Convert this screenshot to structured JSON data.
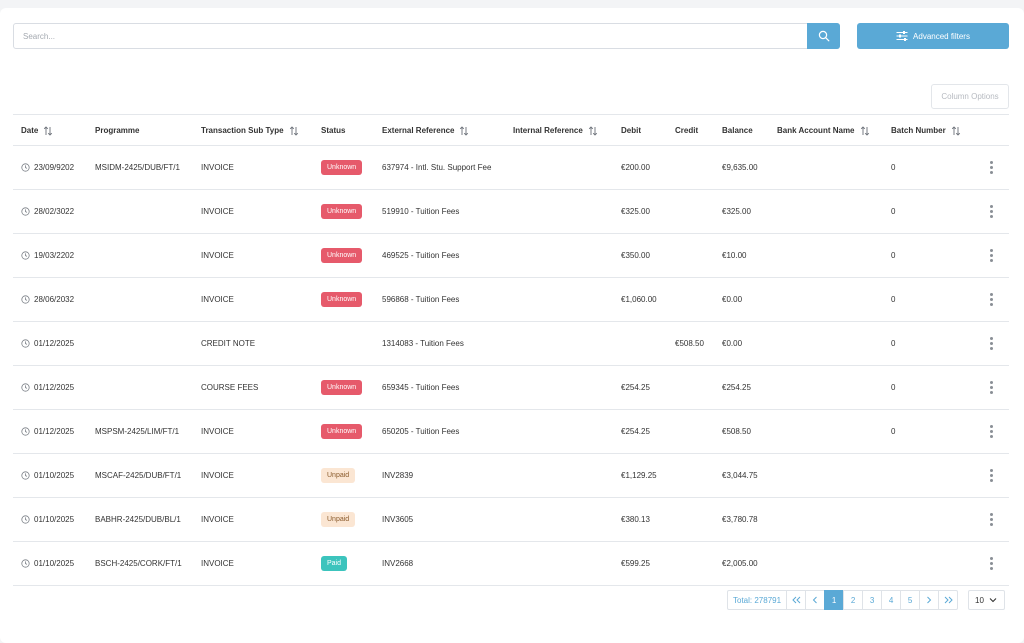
{
  "search": {
    "placeholder": "Search...",
    "value": ""
  },
  "toolbar": {
    "advanced_filters_label": "Advanced filters",
    "column_options_label": "Column Options"
  },
  "colors": {
    "accent": "#5aa9d6",
    "unknown": "#e65a6b",
    "unpaid_bg": "#fbe6d3",
    "unpaid_text": "#8a5a2b",
    "paid": "#3cc4bd"
  },
  "table": {
    "columns": [
      {
        "key": "date",
        "label": "Date",
        "sortable": true
      },
      {
        "key": "programme",
        "label": "Programme",
        "sortable": false
      },
      {
        "key": "subtype",
        "label": "Transaction Sub Type",
        "sortable": true
      },
      {
        "key": "status",
        "label": "Status",
        "sortable": false
      },
      {
        "key": "extref",
        "label": "External Reference",
        "sortable": true
      },
      {
        "key": "intref",
        "label": "Internal Reference",
        "sortable": true
      },
      {
        "key": "debit",
        "label": "Debit",
        "sortable": false
      },
      {
        "key": "credit",
        "label": "Credit",
        "sortable": false
      },
      {
        "key": "balance",
        "label": "Balance",
        "sortable": false
      },
      {
        "key": "bank",
        "label": "Bank Account Name",
        "sortable": true
      },
      {
        "key": "batch",
        "label": "Batch Number",
        "sortable": true
      }
    ],
    "rows": [
      {
        "date": "23/09/9202",
        "programme": "MSIDM-2425/DUB/FT/1",
        "subtype": "INVOICE",
        "status": "Unknown",
        "extref": "637974 - Intl. Stu. Support Fee",
        "intref": "",
        "debit": "€200.00",
        "credit": "",
        "balance": "€9,635.00",
        "bank": "",
        "batch": "0"
      },
      {
        "date": "28/02/3022",
        "programme": "",
        "subtype": "INVOICE",
        "status": "Unknown",
        "extref": "519910 - Tuition Fees",
        "intref": "",
        "debit": "€325.00",
        "credit": "",
        "balance": "€325.00",
        "bank": "",
        "batch": "0"
      },
      {
        "date": "19/03/2202",
        "programme": "",
        "subtype": "INVOICE",
        "status": "Unknown",
        "extref": "469525 - Tuition Fees",
        "intref": "",
        "debit": "€350.00",
        "credit": "",
        "balance": "€10.00",
        "bank": "",
        "batch": "0"
      },
      {
        "date": "28/06/2032",
        "programme": "",
        "subtype": "INVOICE",
        "status": "Unknown",
        "extref": "596868 - Tuition Fees",
        "intref": "",
        "debit": "€1,060.00",
        "credit": "",
        "balance": "€0.00",
        "bank": "",
        "batch": "0"
      },
      {
        "date": "01/12/2025",
        "programme": "",
        "subtype": "CREDIT NOTE",
        "status": "",
        "extref": "1314083 - Tuition Fees",
        "intref": "",
        "debit": "",
        "credit": "€508.50",
        "balance": "€0.00",
        "bank": "",
        "batch": "0"
      },
      {
        "date": "01/12/2025",
        "programme": "",
        "subtype": "COURSE FEES",
        "status": "Unknown",
        "extref": "659345 - Tuition Fees",
        "intref": "",
        "debit": "€254.25",
        "credit": "",
        "balance": "€254.25",
        "bank": "",
        "batch": "0"
      },
      {
        "date": "01/12/2025",
        "programme": "MSPSM-2425/LIM/FT/1",
        "subtype": "INVOICE",
        "status": "Unknown",
        "extref": "650205 - Tuition Fees",
        "intref": "",
        "debit": "€254.25",
        "credit": "",
        "balance": "€508.50",
        "bank": "",
        "batch": "0"
      },
      {
        "date": "01/10/2025",
        "programme": "MSCAF-2425/DUB/FT/1",
        "subtype": "INVOICE",
        "status": "Unpaid",
        "extref": "INV2839",
        "intref": "",
        "debit": "€1,129.25",
        "credit": "",
        "balance": "€3,044.75",
        "bank": "",
        "batch": ""
      },
      {
        "date": "01/10/2025",
        "programme": "BABHR-2425/DUB/BL/1",
        "subtype": "INVOICE",
        "status": "Unpaid",
        "extref": "INV3605",
        "intref": "",
        "debit": "€380.13",
        "credit": "",
        "balance": "€3,780.78",
        "bank": "",
        "batch": ""
      },
      {
        "date": "01/10/2025",
        "programme": "BSCH-2425/CORK/FT/1",
        "subtype": "INVOICE",
        "status": "Paid",
        "extref": "INV2668",
        "intref": "",
        "debit": "€599.25",
        "credit": "",
        "balance": "€2,005.00",
        "bank": "",
        "batch": ""
      }
    ]
  },
  "pagination": {
    "total_label": "Total: 278791",
    "first_icon": "double-chevron-left-icon",
    "prev_icon": "chevron-left-icon",
    "pages": [
      "1",
      "2",
      "3",
      "4",
      "5"
    ],
    "current_page": "1",
    "next_icon": "chevron-right-icon",
    "last_icon": "double-chevron-right-icon",
    "page_size": "10"
  }
}
